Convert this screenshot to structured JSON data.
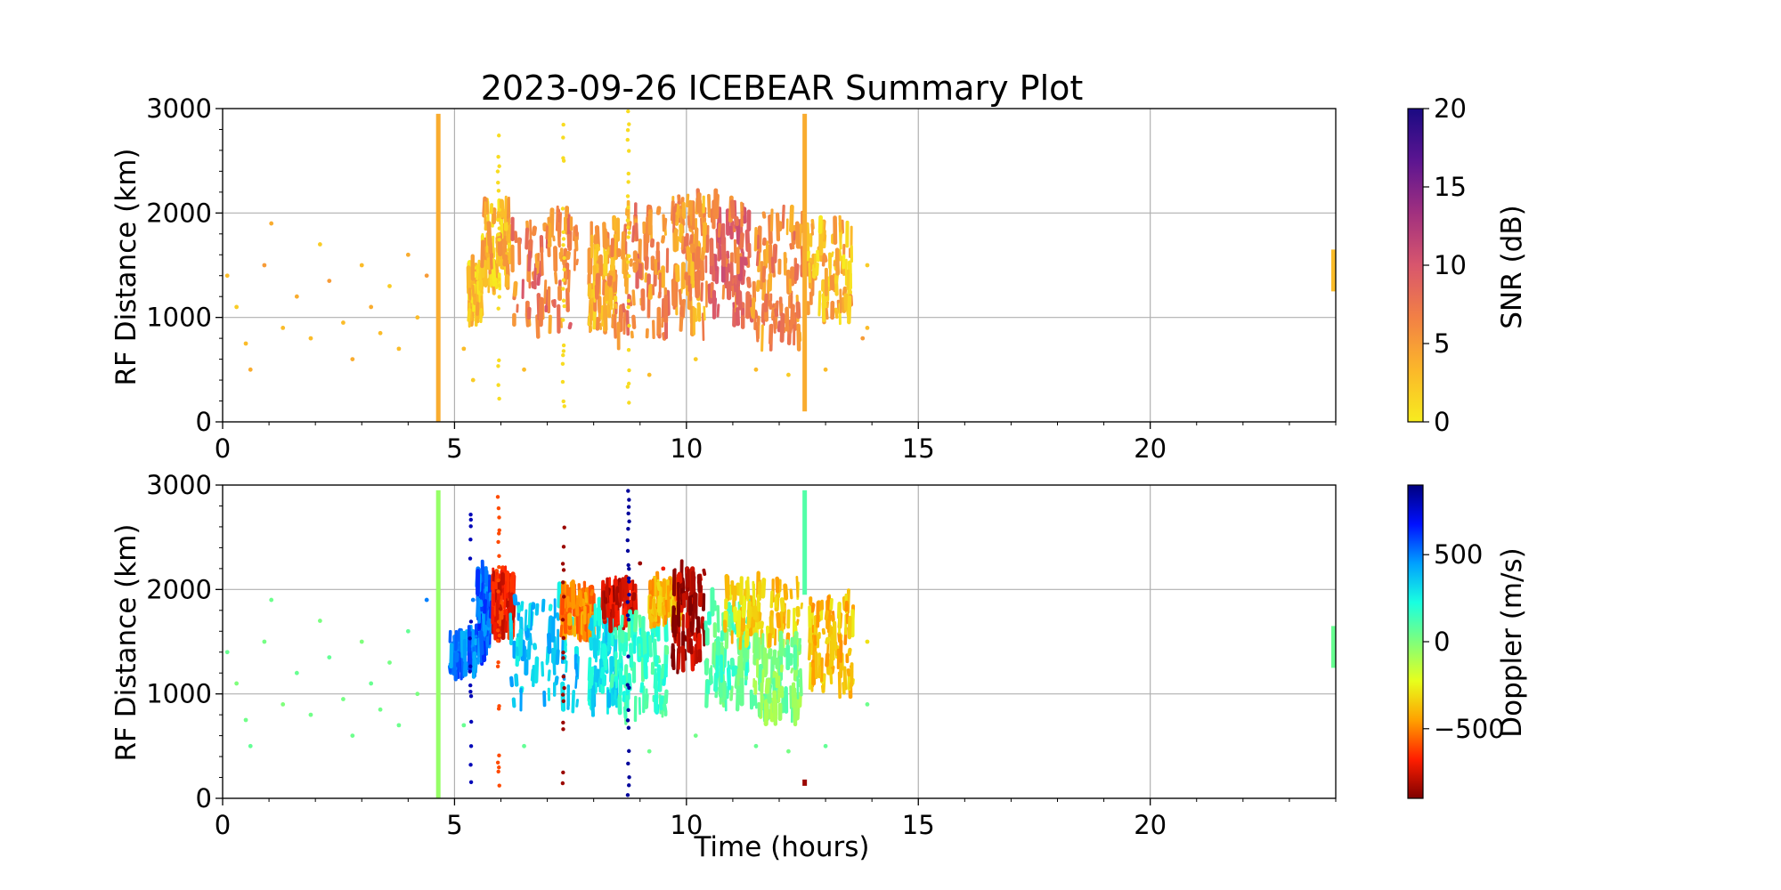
{
  "chart_data": [
    {
      "type": "scatter",
      "title": "2023-09-26 ICEBEAR Summary Plot",
      "xlabel": "",
      "ylabel": "RF Distance (km)",
      "xlim": [
        0,
        24
      ],
      "ylim": [
        0,
        3000
      ],
      "xticks": [
        "0",
        "5",
        "10",
        "15",
        "20"
      ],
      "yticks": [
        "0",
        "1000",
        "2000",
        "3000"
      ],
      "grid": true,
      "color_variable": "snr",
      "colorbar": {
        "label": "SNR (dB)",
        "range": [
          0,
          20
        ],
        "ticks": [
          "0",
          "5",
          "10",
          "15",
          "20"
        ],
        "colormap": [
          "#f7ec1f",
          "#fbb72a",
          "#f28045",
          "#d8566d",
          "#a1307f",
          "#5c1591",
          "#1a0a83"
        ]
      },
      "series": [
        {
          "points": [
            {
              "x": 4.65,
              "y": [
                0,
                2950
              ],
              "snr": 4
            },
            {
              "x": 12.55,
              "y": [
                100,
                2950
              ],
              "snr": 4
            },
            {
              "x": 23.95,
              "y": [
                1250,
                1650
              ],
              "snr": 3
            }
          ],
          "activity_regions": [
            {
              "x": [
                5.3,
                5.6
              ],
              "y": [
                1000,
                1500
              ],
              "snr": 2
            },
            {
              "x": [
                5.6,
                6.2
              ],
              "y": [
                1300,
                2100
              ],
              "snr": 3
            },
            {
              "x": [
                6.2,
                7.7
              ],
              "y": [
                900,
                1950
              ],
              "snr": 7
            },
            {
              "x": [
                7.9,
                8.5
              ],
              "y": [
                900,
                1800
              ],
              "snr": 4
            },
            {
              "x": [
                8.4,
                9.6
              ],
              "y": [
                800,
                2050
              ],
              "snr": 6
            },
            {
              "x": [
                9.7,
                10.4
              ],
              "y": [
                900,
                2150
              ],
              "snr": 5
            },
            {
              "x": [
                10.4,
                11.4
              ],
              "y": [
                1000,
                2100
              ],
              "snr": 8
            },
            {
              "x": [
                11.4,
                12.5
              ],
              "y": [
                800,
                2000
              ],
              "snr": 6
            },
            {
              "x": [
                12.6,
                13.6
              ],
              "y": [
                1000,
                1900
              ],
              "snr": 3
            }
          ],
          "vertical_streaks": [
            {
              "x": 5.95,
              "y": [
                100,
                2900
              ],
              "snr": 1
            },
            {
              "x": 7.35,
              "y": [
                0,
                2900
              ],
              "snr": 1
            },
            {
              "x": 8.75,
              "y": [
                0,
                2950
              ],
              "snr": 1
            }
          ],
          "sparse_points": [
            {
              "x": 0.1,
              "y": 1400,
              "snr": 3
            },
            {
              "x": 0.3,
              "y": 1100,
              "snr": 2
            },
            {
              "x": 0.5,
              "y": 750,
              "snr": 3
            },
            {
              "x": 0.6,
              "y": 500,
              "snr": 4
            },
            {
              "x": 0.9,
              "y": 1500,
              "snr": 5
            },
            {
              "x": 1.05,
              "y": 1900,
              "snr": 4
            },
            {
              "x": 1.3,
              "y": 900,
              "snr": 3
            },
            {
              "x": 1.6,
              "y": 1200,
              "snr": 4
            },
            {
              "x": 1.9,
              "y": 800,
              "snr": 3
            },
            {
              "x": 2.1,
              "y": 1700,
              "snr": 2
            },
            {
              "x": 2.3,
              "y": 1350,
              "snr": 5
            },
            {
              "x": 2.6,
              "y": 950,
              "snr": 3
            },
            {
              "x": 2.8,
              "y": 600,
              "snr": 4
            },
            {
              "x": 3.0,
              "y": 1500,
              "snr": 3
            },
            {
              "x": 3.2,
              "y": 1100,
              "snr": 4
            },
            {
              "x": 3.4,
              "y": 850,
              "snr": 3
            },
            {
              "x": 3.6,
              "y": 1300,
              "snr": 2
            },
            {
              "x": 3.8,
              "y": 700,
              "snr": 3
            },
            {
              "x": 4.0,
              "y": 1600,
              "snr": 4
            },
            {
              "x": 4.2,
              "y": 1000,
              "snr": 3
            },
            {
              "x": 4.4,
              "y": 1400,
              "snr": 5
            },
            {
              "x": 5.2,
              "y": 700,
              "snr": 3
            },
            {
              "x": 5.4,
              "y": 400,
              "snr": 2
            },
            {
              "x": 6.5,
              "y": 500,
              "snr": 3
            },
            {
              "x": 9.2,
              "y": 450,
              "snr": 3
            },
            {
              "x": 10.2,
              "y": 600,
              "snr": 2
            },
            {
              "x": 11.5,
              "y": 500,
              "snr": 3
            },
            {
              "x": 12.2,
              "y": 450,
              "snr": 2
            },
            {
              "x": 13.0,
              "y": 500,
              "snr": 3
            },
            {
              "x": 13.9,
              "y": 900,
              "snr": 3
            },
            {
              "x": 13.9,
              "y": 1500,
              "snr": 2
            },
            {
              "x": 13.8,
              "y": 800,
              "snr": 5
            }
          ]
        }
      ]
    },
    {
      "type": "scatter",
      "title": "",
      "xlabel": "Time (hours)",
      "ylabel": "RF Distance (km)",
      "xlim": [
        0,
        24
      ],
      "ylim": [
        0,
        3000
      ],
      "xticks": [
        "0",
        "5",
        "10",
        "15",
        "20"
      ],
      "yticks": [
        "0",
        "1000",
        "2000",
        "3000"
      ],
      "grid": true,
      "color_variable": "doppler",
      "colorbar": {
        "label": "Doppler (m/s)",
        "range": [
          -900,
          900
        ],
        "ticks": [
          "−500",
          "0",
          "500"
        ],
        "tick_values": [
          -500,
          0,
          500
        ],
        "colormap": [
          "#7f0000",
          "#ff1e00",
          "#ffa100",
          "#e7ff1d",
          "#7fff7b",
          "#19ffe0",
          "#00a0ff",
          "#0010ff",
          "#00007f"
        ]
      },
      "series": [
        {
          "points": [
            {
              "x": 4.65,
              "y": [
                0,
                2950
              ],
              "doppler": -50
            },
            {
              "x": 12.55,
              "y": [
                1950,
                2950
              ],
              "doppler": 100
            },
            {
              "x": 12.55,
              "y": [
                120,
                180
              ],
              "doppler": -850
            },
            {
              "x": 23.95,
              "y": [
                1250,
                1650
              ],
              "doppler": 50
            }
          ],
          "activity_regions": [
            {
              "x": [
                4.9,
                5.5
              ],
              "y": [
                1200,
                1550
              ],
              "doppler": 500
            },
            {
              "x": [
                5.5,
                5.8
              ],
              "y": [
                1400,
                2150
              ],
              "doppler": 550
            },
            {
              "x": [
                5.8,
                6.3
              ],
              "y": [
                1600,
                2150
              ],
              "doppler": -700
            },
            {
              "x": [
                6.2,
                7.7
              ],
              "y": [
                900,
                1950
              ],
              "doppler": 350
            },
            {
              "x": [
                7.3,
                8.0
              ],
              "y": [
                1600,
                2000
              ],
              "doppler": -500
            },
            {
              "x": [
                7.9,
                8.5
              ],
              "y": [
                900,
                1800
              ],
              "doppler": 300
            },
            {
              "x": [
                8.2,
                8.9
              ],
              "y": [
                1700,
                2050
              ],
              "doppler": -750
            },
            {
              "x": [
                8.4,
                9.6
              ],
              "y": [
                800,
                1700
              ],
              "doppler": 150
            },
            {
              "x": [
                9.2,
                9.9
              ],
              "y": [
                1700,
                2050
              ],
              "doppler": -400
            },
            {
              "x": [
                9.7,
                10.4
              ],
              "y": [
                1300,
                2200
              ],
              "doppler": -820
            },
            {
              "x": [
                10.4,
                11.4
              ],
              "y": [
                900,
                1900
              ],
              "doppler": 100
            },
            {
              "x": [
                10.8,
                12.5
              ],
              "y": [
                1500,
                2050
              ],
              "doppler": -350
            },
            {
              "x": [
                11.4,
                12.5
              ],
              "y": [
                800,
                1500
              ],
              "doppler": 0
            },
            {
              "x": [
                12.6,
                13.6
              ],
              "y": [
                1000,
                1900
              ],
              "doppler": -380
            }
          ],
          "vertical_streaks": [
            {
              "x": 5.35,
              "y": [
                0,
                2800
              ],
              "doppler": 800
            },
            {
              "x": 5.95,
              "y": [
                100,
                2900
              ],
              "doppler": -600
            },
            {
              "x": 7.35,
              "y": [
                0,
                2600
              ],
              "doppler": -850
            },
            {
              "x": 8.75,
              "y": [
                0,
                2950
              ],
              "doppler": 850
            }
          ],
          "sparse_points": [
            {
              "x": 0.1,
              "y": 1400,
              "doppler": 50
            },
            {
              "x": 0.3,
              "y": 1100,
              "doppler": 0
            },
            {
              "x": 0.5,
              "y": 750,
              "doppler": 30
            },
            {
              "x": 0.6,
              "y": 500,
              "doppler": 60
            },
            {
              "x": 0.9,
              "y": 1500,
              "doppler": 20
            },
            {
              "x": 1.05,
              "y": 1900,
              "doppler": 40
            },
            {
              "x": 1.3,
              "y": 900,
              "doppler": 0
            },
            {
              "x": 1.6,
              "y": 1200,
              "doppler": 50
            },
            {
              "x": 1.9,
              "y": 800,
              "doppler": 30
            },
            {
              "x": 2.1,
              "y": 1700,
              "doppler": 10
            },
            {
              "x": 2.3,
              "y": 1350,
              "doppler": 60
            },
            {
              "x": 2.6,
              "y": 950,
              "doppler": 20
            },
            {
              "x": 2.8,
              "y": 600,
              "doppler": 40
            },
            {
              "x": 3.0,
              "y": 1500,
              "doppler": 0
            },
            {
              "x": 3.2,
              "y": 1100,
              "doppler": 50
            },
            {
              "x": 3.4,
              "y": 850,
              "doppler": 30
            },
            {
              "x": 3.6,
              "y": 1300,
              "doppler": 20
            },
            {
              "x": 3.8,
              "y": 700,
              "doppler": 40
            },
            {
              "x": 4.0,
              "y": 1600,
              "doppler": 60
            },
            {
              "x": 4.2,
              "y": 1000,
              "doppler": 10
            },
            {
              "x": 4.4,
              "y": 1900,
              "doppler": 500
            },
            {
              "x": 5.2,
              "y": 700,
              "doppler": 50
            },
            {
              "x": 6.5,
              "y": 500,
              "doppler": 60
            },
            {
              "x": 9.2,
              "y": 450,
              "doppler": 40
            },
            {
              "x": 10.2,
              "y": 600,
              "doppler": 30
            },
            {
              "x": 11.5,
              "y": 500,
              "doppler": 50
            },
            {
              "x": 12.2,
              "y": 450,
              "doppler": 20
            },
            {
              "x": 13.0,
              "y": 500,
              "doppler": 60
            },
            {
              "x": 13.9,
              "y": 900,
              "doppler": 40
            },
            {
              "x": 13.9,
              "y": 1500,
              "doppler": -300
            },
            {
              "x": 9.0,
              "y": 2250,
              "doppler": -850
            },
            {
              "x": 9.5,
              "y": 2200,
              "doppler": -700
            },
            {
              "x": 5.4,
              "y": 1900,
              "doppler": 500
            }
          ]
        }
      ]
    }
  ]
}
